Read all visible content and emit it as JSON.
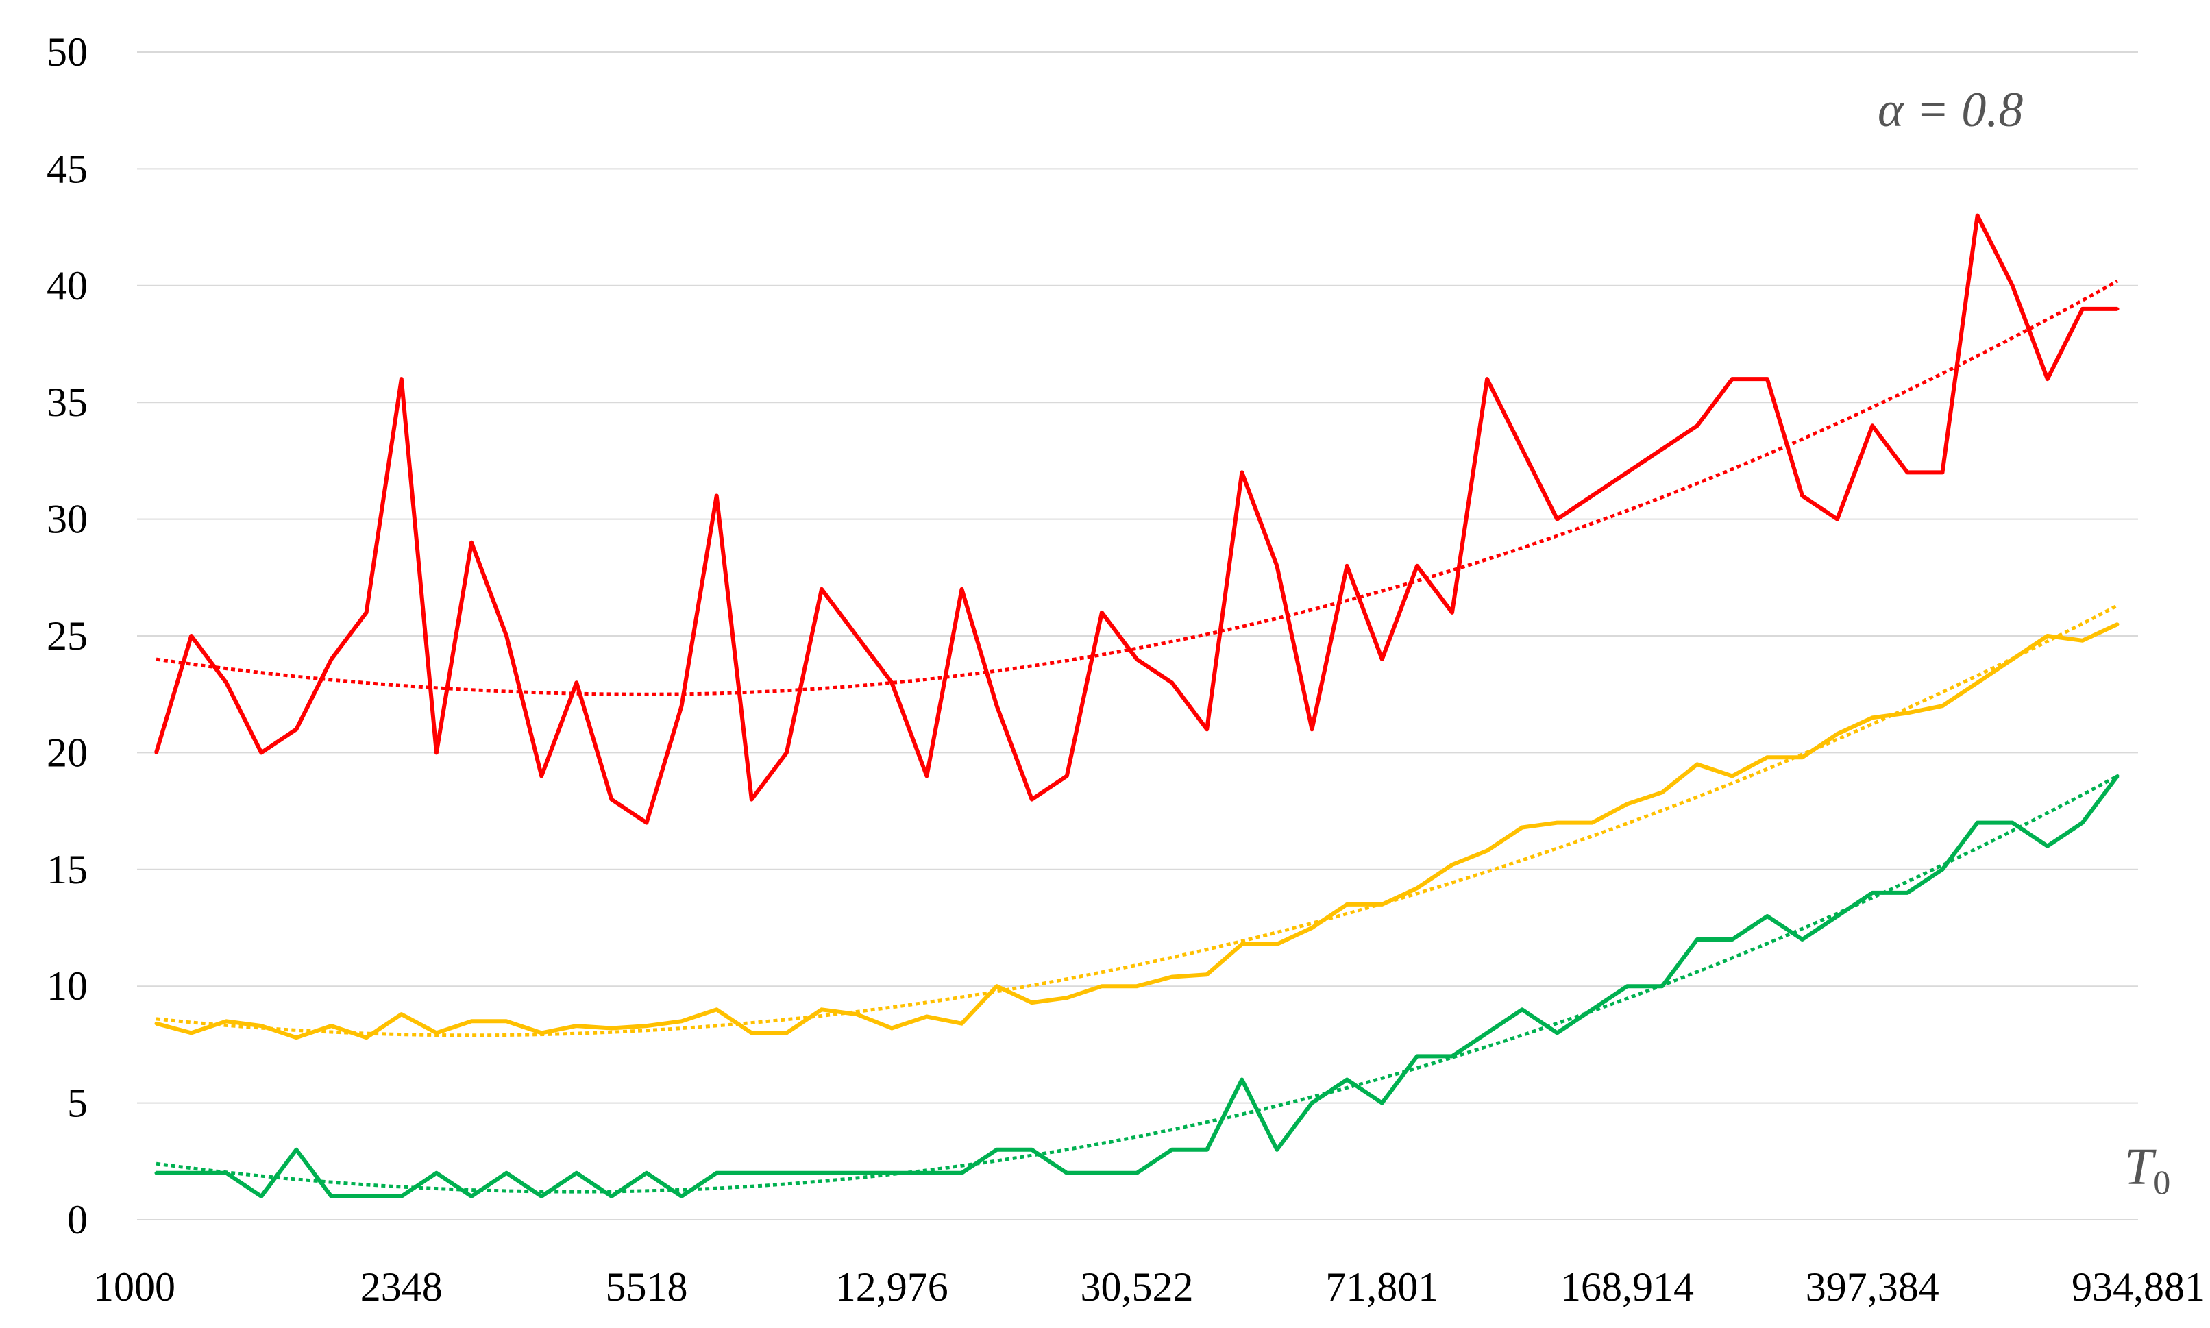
{
  "chart_data": {
    "type": "line",
    "title": "",
    "xlabel": "T0",
    "ylabel": "",
    "ylim": [
      0,
      50
    ],
    "yticks": [
      0,
      5,
      10,
      15,
      20,
      25,
      30,
      35,
      40,
      45,
      50
    ],
    "grid": true,
    "legend": "none",
    "annotation": "α = 0.8",
    "x_axis_label_text": "T",
    "x_axis_label_subscript": "0",
    "x_count": 57,
    "x_tick_labels": [
      {
        "index": 0,
        "label": "1000"
      },
      {
        "index": 7,
        "label": "2348"
      },
      {
        "index": 14,
        "label": "5518"
      },
      {
        "index": 21,
        "label": "12,976"
      },
      {
        "index": 28,
        "label": "30,522"
      },
      {
        "index": 35,
        "label": "71,801"
      },
      {
        "index": 42,
        "label": "168,914"
      },
      {
        "index": 49,
        "label": "397,384"
      },
      {
        "index": 56,
        "label": "934,881"
      }
    ],
    "series": [
      {
        "color": "#ff0000",
        "values": [
          20,
          25,
          23,
          20,
          21,
          24,
          26,
          36,
          20,
          29,
          25,
          19,
          23,
          18,
          17,
          22,
          31,
          18,
          20,
          27,
          25,
          23,
          19,
          27,
          22,
          18,
          19,
          26,
          24,
          23,
          21,
          32,
          28,
          21,
          28,
          24,
          28,
          26,
          36,
          33,
          30,
          31,
          32,
          33,
          34,
          36,
          36,
          31,
          30,
          34,
          32,
          32,
          43,
          40,
          36,
          39,
          39
        ],
        "trend": {
          "type": "quadratic",
          "start": 24.0,
          "min_index": 14,
          "min": 22.5,
          "end": 40.2
        }
      },
      {
        "color": "#ffc000",
        "values": [
          8.4,
          8.0,
          8.5,
          8.3,
          7.8,
          8.3,
          7.8,
          8.8,
          8.0,
          8.5,
          8.5,
          8.0,
          8.3,
          8.2,
          8.3,
          8.5,
          9.0,
          8.0,
          8.0,
          9.0,
          8.8,
          8.2,
          8.7,
          8.4,
          10.0,
          9.3,
          9.5,
          10.0,
          10.0,
          10.4,
          10.5,
          11.8,
          11.8,
          12.5,
          13.5,
          13.5,
          14.2,
          15.2,
          15.8,
          16.8,
          17.0,
          17.0,
          17.8,
          18.3,
          19.5,
          19.0,
          19.8,
          19.8,
          20.8,
          21.5,
          21.7,
          22.0,
          23.0,
          24.0,
          25.0,
          24.8,
          25.5
        ],
        "trend": {
          "type": "quadratic",
          "start": 8.6,
          "min_index": 9,
          "min": 7.9,
          "end": 26.3
        }
      },
      {
        "color": "#00b050",
        "values": [
          2,
          2,
          2,
          1,
          3,
          1,
          1,
          1,
          2,
          1,
          2,
          1,
          2,
          1,
          2,
          1,
          2,
          2,
          2,
          2,
          2,
          2,
          2,
          2,
          3,
          3,
          2,
          2,
          2,
          3,
          3,
          6,
          3,
          5,
          6,
          5,
          7,
          7,
          8,
          9,
          8,
          9,
          10,
          10,
          12,
          12,
          13,
          12,
          13,
          14,
          14,
          15,
          17,
          17,
          16,
          17,
          19
        ],
        "trend": {
          "type": "quadratic",
          "start": 2.4,
          "min_index": 12,
          "min": 1.2,
          "end": 19.0
        }
      }
    ]
  }
}
